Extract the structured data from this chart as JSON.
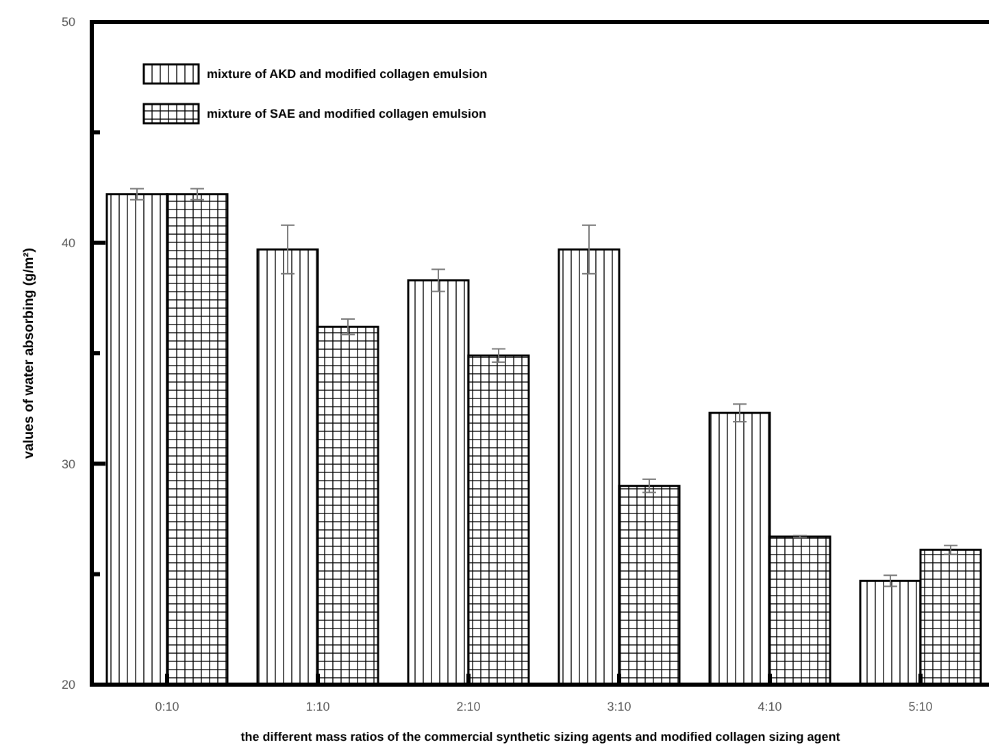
{
  "chart_data": {
    "type": "bar",
    "xlabel": "the different mass ratios of the commercial synthetic sizing agents and modified collagen sizing agent",
    "ylabel": "values of water absorbing (g/m²)",
    "categories": [
      "0:10",
      "1:10",
      "2:10",
      "3:10",
      "4:10",
      "5:10"
    ],
    "series": [
      {
        "name": "mixture of AKD and modified collagen emulsion",
        "color": "#000000",
        "values": [
          42.2,
          39.7,
          38.3,
          39.7,
          32.3,
          24.7
        ],
        "errors": [
          0.25,
          1.1,
          0.5,
          1.1,
          0.4,
          0.25
        ]
      },
      {
        "name": "mixture of SAE and modified collagen emulsion",
        "color": "#000000",
        "values": [
          42.2,
          36.2,
          34.9,
          29.0,
          26.7,
          26.1
        ],
        "errors": [
          0.25,
          0.35,
          0.3,
          0.3,
          0.05,
          0.2
        ]
      }
    ],
    "ylim": [
      20,
      50
    ],
    "yticks": [
      20,
      {
        "value": 25,
        "label": null
      },
      30,
      {
        "value": 35,
        "label": null
      },
      40,
      {
        "value": 45,
        "label": null
      },
      50
    ],
    "legend": "top left",
    "grid": false
  }
}
